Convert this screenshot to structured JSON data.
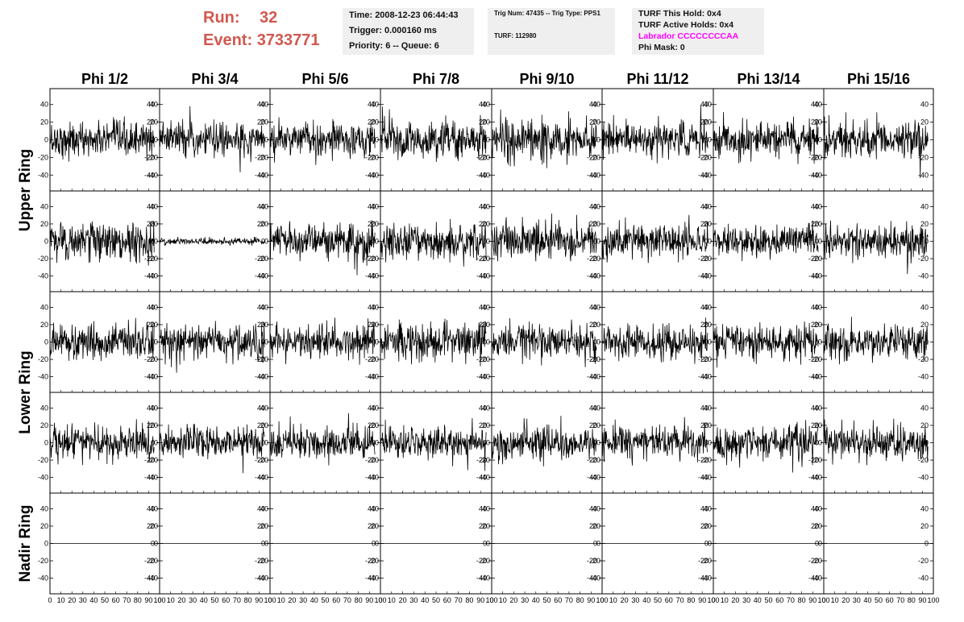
{
  "header": {
    "run_label": "Run:",
    "run_value": "32",
    "event_label": "Event:",
    "event_value": "3733771",
    "time": "Time: 2008-12-23 06:44:43",
    "trigger": "Trigger: 0.000160 ms",
    "priority": "Priority: 6 -- Queue: 6",
    "trig_num": "Trig Num: 47435 -- Trig Type: PPS1",
    "turf": "TURF: 112980",
    "turf_this_hold": "TURF This Hold: 0x4",
    "turf_active_holds": "TURF Active Holds: 0x4",
    "labrador": "Labrador CCCCCCCCAA",
    "phi_mask": "Phi Mask: 0"
  },
  "colors": {
    "run_event": "#d2584f",
    "labrador": "#ff00ff",
    "info_bg": "#efefef"
  },
  "chart_data": {
    "type": "line",
    "columns": [
      "Phi 1/2",
      "Phi 3/4",
      "Phi 5/6",
      "Phi 7/8",
      "Phi 9/10",
      "Phi 11/12",
      "Phi 13/14",
      "Phi 15/16"
    ],
    "row_labels": [
      "Upper Ring",
      "Lower Ring",
      "Nadir Ring"
    ],
    "rows": 5,
    "y_ticks": [
      40,
      20,
      0,
      -20,
      -40
    ],
    "ylim": [
      -58,
      58
    ],
    "x_ticks": [
      0,
      10,
      20,
      30,
      40,
      50,
      60,
      70,
      80,
      90,
      100
    ],
    "x_tick_text": "0 10 20 30 40 50 60 70 80 90 100",
    "xlim": [
      0,
      100
    ],
    "trace_x_range": [
      0,
      95
    ],
    "samples": 260,
    "description_of_series": "40 waveform panels (8 phi sectors x 5 rows): rows 1-4 show noise traces, row 2 / Phi 3/4 is a low-amplitude trace, row 5 (Nadir) traces are flat at 0",
    "amplitudes": [
      [
        11,
        11,
        11,
        12,
        13,
        11,
        11,
        12
      ],
      [
        12,
        2,
        12,
        12,
        12,
        11,
        10,
        11
      ],
      [
        11,
        11,
        11,
        12,
        11,
        11,
        11,
        11
      ],
      [
        11,
        11,
        11,
        10,
        11,
        11,
        11,
        11
      ],
      [
        0,
        0,
        0,
        0,
        0,
        0,
        0,
        0
      ]
    ]
  }
}
